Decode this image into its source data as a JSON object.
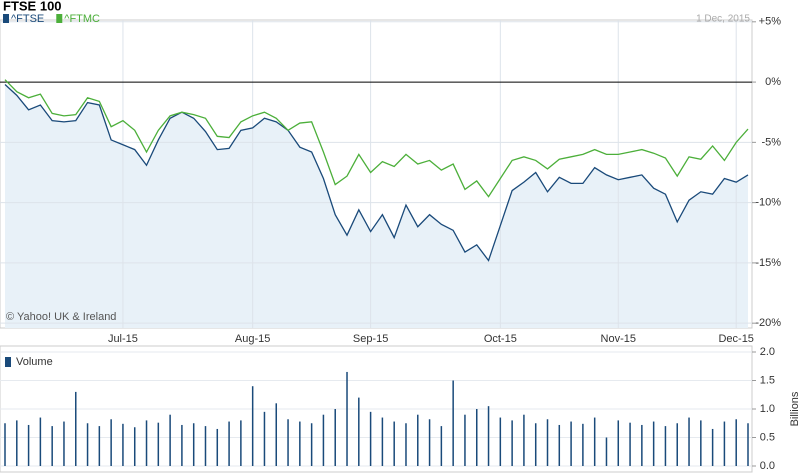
{
  "chart_data": [
    {
      "type": "line",
      "title": "FTSE 100",
      "annotations": [
        "1 Dec, 2015",
        "© Yahoo! UK & Ireland"
      ],
      "categories": [
        null,
        null,
        null,
        null,
        null,
        null,
        null,
        null,
        null,
        null,
        "Jul-15",
        null,
        null,
        null,
        null,
        null,
        null,
        null,
        null,
        null,
        null,
        "Aug-15",
        null,
        null,
        null,
        null,
        null,
        null,
        null,
        null,
        null,
        "Sep-15",
        null,
        null,
        null,
        null,
        null,
        null,
        null,
        null,
        null,
        null,
        "Oct-15",
        null,
        null,
        null,
        null,
        null,
        null,
        null,
        null,
        null,
        "Nov-15",
        null,
        null,
        null,
        null,
        null,
        null,
        null,
        null,
        null,
        "Dec-15",
        null
      ],
      "series": [
        {
          "name": "^FTSE",
          "color": "#1a4a7a",
          "values": [
            -0.2,
            -1.1,
            -2.3,
            -1.9,
            -3.2,
            -3.3,
            -3.2,
            -1.7,
            -1.9,
            -4.8,
            -5.2,
            -5.6,
            -6.9,
            -4.8,
            -3.0,
            -2.5,
            -3.0,
            -4.1,
            -5.6,
            -5.5,
            -4.0,
            -3.8,
            -3.0,
            -3.3,
            -4.0,
            -5.4,
            -5.8,
            -8.0,
            -11.0,
            -12.7,
            -10.6,
            -12.4,
            -11.0,
            -12.9,
            -10.2,
            -12.0,
            -11.0,
            -11.8,
            -12.3,
            -14.1,
            -13.5,
            -14.8,
            -11.9,
            -9.0,
            -8.3,
            -7.5,
            -9.1,
            -7.9,
            -8.4,
            -8.4,
            -7.1,
            -7.7,
            -8.1,
            -7.9,
            -7.7,
            -8.8,
            -9.3,
            -11.6,
            -9.8,
            -9.1,
            -9.3,
            -8.0,
            -8.3,
            -7.7
          ]
        },
        {
          "name": "^FTMC",
          "color": "#4caf3a",
          "values": [
            0.2,
            -0.8,
            -1.3,
            -1.0,
            -2.6,
            -2.8,
            -2.7,
            -1.3,
            -1.6,
            -3.7,
            -3.2,
            -4.0,
            -5.8,
            -4.0,
            -2.8,
            -2.5,
            -2.7,
            -3.0,
            -4.5,
            -4.6,
            -3.3,
            -2.8,
            -2.5,
            -3.0,
            -4.0,
            -3.4,
            -3.3,
            -5.8,
            -8.5,
            -7.8,
            -6.0,
            -7.5,
            -6.6,
            -7.0,
            -6.0,
            -6.8,
            -6.5,
            -7.3,
            -6.8,
            -8.9,
            -8.2,
            -9.5,
            -8.0,
            -6.5,
            -6.2,
            -6.5,
            -7.2,
            -6.4,
            -6.2,
            -6.0,
            -5.6,
            -6.0,
            -6.0,
            -5.8,
            -5.6,
            -5.9,
            -6.3,
            -7.8,
            -6.2,
            -6.4,
            -5.3,
            -6.5,
            -5.0,
            -3.9
          ]
        }
      ],
      "area_color": "#e8f1f8",
      "ylim": [
        -20.4,
        5.15
      ],
      "yticks": [
        {
          "value": 5,
          "label": "+5%"
        },
        {
          "value": 0,
          "label": "0%"
        },
        {
          "value": -5,
          "label": "-5%"
        },
        {
          "value": -10,
          "label": "-10%"
        },
        {
          "value": -15,
          "label": "-15%"
        },
        {
          "value": -20,
          "label": "-20%"
        }
      ],
      "grid": true
    },
    {
      "type": "bar",
      "title": "Volume",
      "y_axis_label": "Billions",
      "color": "#1a4a7a",
      "values": [
        0.75,
        0.8,
        0.72,
        0.85,
        0.7,
        0.78,
        1.3,
        0.75,
        0.7,
        0.82,
        0.74,
        0.68,
        0.8,
        0.76,
        0.9,
        0.72,
        0.75,
        0.7,
        0.65,
        0.78,
        0.8,
        1.4,
        0.95,
        1.1,
        0.82,
        0.78,
        0.75,
        0.9,
        1.0,
        1.65,
        1.2,
        0.95,
        0.85,
        0.78,
        0.75,
        0.9,
        0.82,
        0.7,
        1.5,
        0.9,
        1.0,
        1.05,
        0.85,
        0.8,
        0.9,
        0.75,
        0.82,
        0.72,
        0.78,
        0.74,
        0.85,
        0.5,
        0.8,
        0.76,
        0.72,
        0.78,
        0.7,
        0.75,
        0.85,
        0.8,
        0.65,
        0.78,
        0.82,
        0.75
      ],
      "ylim": [
        0,
        2.0
      ],
      "yticks": [
        {
          "value": 0,
          "label": "0.0"
        },
        0.5,
        {
          "value": 1,
          "label": "1.0"
        },
        1.5,
        {
          "value": 2,
          "label": "2.0"
        }
      ],
      "grid": true
    }
  ]
}
